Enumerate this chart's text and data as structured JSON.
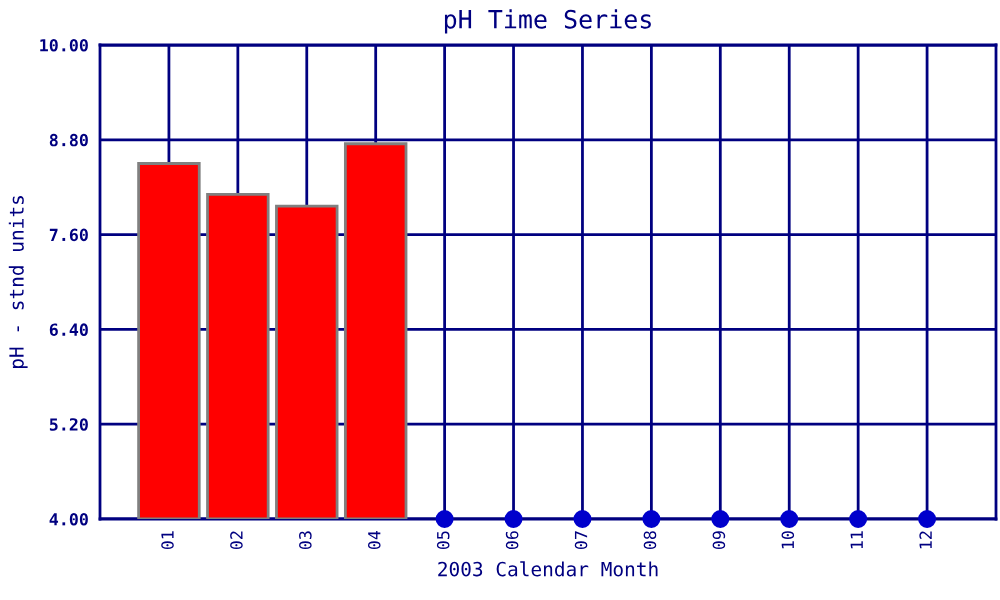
{
  "chart_data": {
    "type": "bar",
    "title": "pH Time Series",
    "xlabel": "2003 Calendar Month",
    "ylabel": "pH - stnd units",
    "categories": [
      "01",
      "02",
      "03",
      "04",
      "05",
      "06",
      "07",
      "08",
      "09",
      "10",
      "11",
      "12"
    ],
    "series": [
      {
        "color": "#ff0000",
        "values": [
          8.5,
          8.11,
          7.96,
          8.75,
          null,
          null,
          null,
          null,
          null,
          null,
          null,
          null
        ]
      },
      {
        "type": "scatter",
        "color": "#0000cc",
        "values": [
          null,
          null,
          null,
          null,
          4.0,
          4.0,
          4.0,
          4.0,
          4.0,
          4.0,
          4.0,
          4.0
        ]
      }
    ],
    "ylim": [
      4.0,
      10.0
    ],
    "yticks": [
      {
        "value": 4.0,
        "label": "4.00"
      },
      {
        "value": 5.2,
        "label": "5.20"
      },
      {
        "value": 6.4,
        "label": "6.40"
      },
      {
        "value": 7.6,
        "label": "7.60"
      },
      {
        "value": 8.8,
        "label": "8.80"
      },
      {
        "value": 10.0,
        "label": "10.00"
      }
    ],
    "grid": true,
    "marker": "circle",
    "legend": false
  }
}
